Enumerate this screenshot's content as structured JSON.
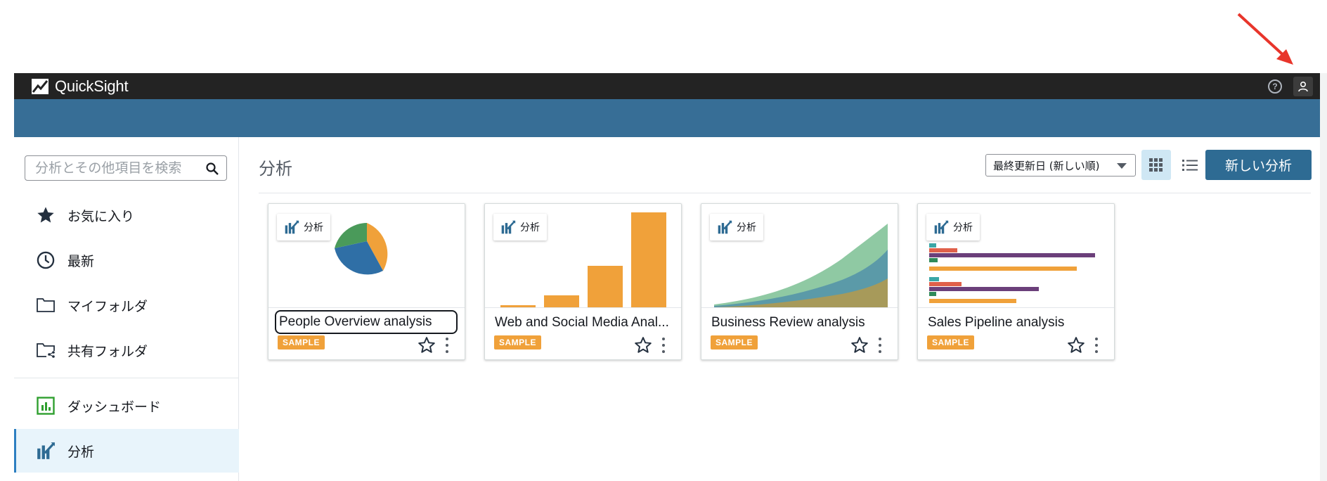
{
  "app": {
    "name": "QuickSight"
  },
  "colors": {
    "topbar": "#232323",
    "bluebar": "#376e96",
    "primary_button": "#2e6b93",
    "sample_tag": "#f0a13a",
    "annotation_arrow": "#e8352b"
  },
  "header": {
    "help_icon": "help-circle-icon",
    "user_icon": "user-icon"
  },
  "sidebar": {
    "search_placeholder": "分析とその他項目を検索",
    "items": [
      {
        "label": "お気に入り",
        "icon": "star-icon"
      },
      {
        "label": "最新",
        "icon": "clock-icon"
      },
      {
        "label": "マイフォルダ",
        "icon": "folder-icon"
      },
      {
        "label": "共有フォルダ",
        "icon": "shared-folder-icon"
      },
      {
        "label": "ダッシュボード",
        "icon": "dashboard-icon"
      },
      {
        "label": "分析",
        "icon": "analysis-icon",
        "active": true
      }
    ]
  },
  "main": {
    "title": "分析",
    "sort_label": "最終更新日 (新しい順)",
    "view_mode": "grid",
    "new_button": "新しい分析",
    "cards": [
      {
        "badge": "分析",
        "title": "People Overview analysis",
        "tag": "SAMPLE",
        "thumb": "pie",
        "focused": true
      },
      {
        "badge": "分析",
        "title": "Web and Social Media Anal...",
        "tag": "SAMPLE",
        "thumb": "bar"
      },
      {
        "badge": "分析",
        "title": "Business Review analysis",
        "tag": "SAMPLE",
        "thumb": "area"
      },
      {
        "badge": "分析",
        "title": "Sales Pipeline analysis",
        "tag": "SAMPLE",
        "thumb": "hbar"
      }
    ]
  }
}
